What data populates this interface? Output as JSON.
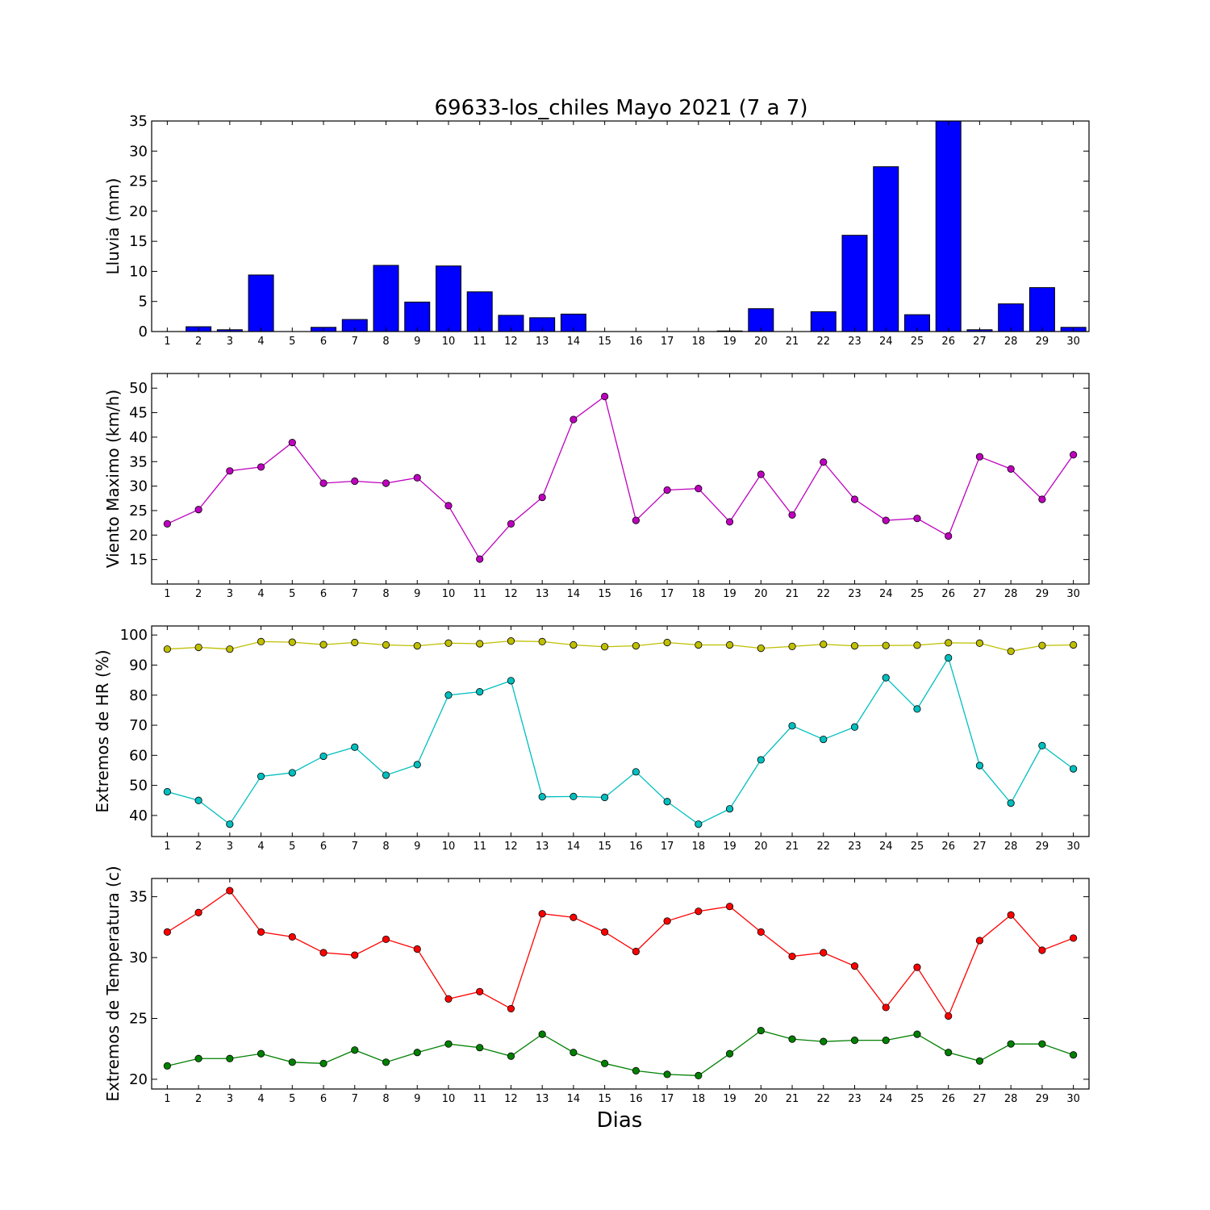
{
  "title": "69633-los_chiles Mayo 2021  (7 a 7)",
  "xlabel": "Dias",
  "chart_data": [
    {
      "type": "bar",
      "ylabel": "Lluvia (mm)",
      "x": [
        1,
        2,
        3,
        4,
        5,
        6,
        7,
        8,
        9,
        10,
        11,
        12,
        13,
        14,
        15,
        16,
        17,
        18,
        19,
        20,
        21,
        22,
        23,
        24,
        25,
        26,
        27,
        28,
        29,
        30
      ],
      "ylim": [
        0,
        35
      ],
      "yticks": [
        0,
        5,
        10,
        15,
        20,
        25,
        30,
        35
      ],
      "series": [
        {
          "color": "#0000ff",
          "values": [
            0,
            0.8,
            0.3,
            9.4,
            0,
            0.7,
            2.0,
            11.0,
            4.9,
            10.9,
            6.6,
            2.7,
            2.3,
            2.9,
            0,
            0,
            0,
            0,
            0.1,
            3.8,
            0,
            3.3,
            16.0,
            27.4,
            2.8,
            35.0,
            0.3,
            4.6,
            7.3,
            0.7
          ]
        }
      ],
      "grid": false
    },
    {
      "type": "line",
      "ylabel": "Viento Maximo (km/h)",
      "x": [
        1,
        2,
        3,
        4,
        5,
        6,
        7,
        8,
        9,
        10,
        11,
        12,
        13,
        14,
        15,
        16,
        17,
        18,
        19,
        20,
        21,
        22,
        23,
        24,
        25,
        26,
        27,
        28,
        29,
        30
      ],
      "ylim": [
        10,
        53
      ],
      "yticks": [
        15,
        20,
        25,
        30,
        35,
        40,
        45,
        50
      ],
      "series": [
        {
          "color": "#bf00bf",
          "values": [
            22.3,
            25.2,
            33.1,
            33.9,
            38.9,
            30.6,
            31.0,
            30.6,
            31.7,
            26.0,
            15.1,
            22.3,
            27.7,
            43.6,
            48.3,
            23.0,
            29.2,
            29.5,
            22.7,
            32.4,
            24.1,
            34.9,
            27.3,
            23.0,
            23.4,
            19.8,
            36.0,
            33.5,
            27.3,
            36.4
          ]
        }
      ],
      "grid": false
    },
    {
      "type": "line",
      "ylabel": "Extremos de HR (%)",
      "x": [
        1,
        2,
        3,
        4,
        5,
        6,
        7,
        8,
        9,
        10,
        11,
        12,
        13,
        14,
        15,
        16,
        17,
        18,
        19,
        20,
        21,
        22,
        23,
        24,
        25,
        26,
        27,
        28,
        29,
        30
      ],
      "ylim": [
        33,
        103
      ],
      "yticks": [
        40,
        50,
        60,
        70,
        80,
        90,
        100
      ],
      "series": [
        {
          "color": "#bfbf00",
          "values": [
            95.3,
            95.9,
            95.3,
            97.8,
            97.6,
            96.8,
            97.5,
            96.7,
            96.4,
            97.3,
            97.1,
            98.0,
            97.8,
            96.7,
            96.1,
            96.4,
            97.5,
            96.7,
            96.7,
            95.6,
            96.2,
            96.9,
            96.4,
            96.5,
            96.6,
            97.4,
            97.3,
            94.6,
            96.5,
            96.7
          ]
        },
        {
          "color": "#00bfbf",
          "values": [
            47.9,
            45.0,
            37.1,
            53.0,
            54.2,
            59.7,
            62.7,
            53.4,
            56.9,
            80.0,
            81.1,
            84.8,
            46.2,
            46.3,
            46.0,
            54.5,
            44.6,
            37.1,
            42.2,
            58.5,
            69.8,
            65.3,
            69.4,
            85.8,
            75.4,
            92.4,
            56.6,
            44.1,
            63.2,
            55.5
          ]
        }
      ],
      "grid": false
    },
    {
      "type": "line",
      "ylabel": "Extremos de Temperatura (c)",
      "x": [
        1,
        2,
        3,
        4,
        5,
        6,
        7,
        8,
        9,
        10,
        11,
        12,
        13,
        14,
        15,
        16,
        17,
        18,
        19,
        20,
        21,
        22,
        23,
        24,
        25,
        26,
        27,
        28,
        29,
        30
      ],
      "ylim": [
        19.2,
        36.5
      ],
      "yticks": [
        20,
        25,
        30,
        35
      ],
      "series": [
        {
          "color": "#ff0000",
          "values": [
            32.1,
            33.7,
            35.5,
            32.1,
            31.7,
            30.4,
            30.2,
            31.5,
            30.7,
            26.6,
            27.2,
            25.8,
            33.6,
            33.3,
            32.1,
            30.5,
            33.0,
            33.8,
            34.2,
            32.1,
            30.1,
            30.4,
            29.3,
            25.9,
            29.2,
            25.2,
            31.4,
            33.5,
            30.6,
            31.6
          ]
        },
        {
          "color": "#008000",
          "values": [
            21.1,
            21.7,
            21.7,
            22.1,
            21.4,
            21.3,
            22.4,
            21.4,
            22.2,
            22.9,
            22.6,
            21.9,
            23.7,
            22.2,
            21.3,
            20.7,
            20.4,
            20.3,
            22.1,
            24.0,
            23.3,
            23.1,
            23.2,
            23.2,
            23.7,
            22.2,
            21.5,
            22.9,
            22.9,
            22.0
          ]
        }
      ],
      "grid": false
    }
  ]
}
